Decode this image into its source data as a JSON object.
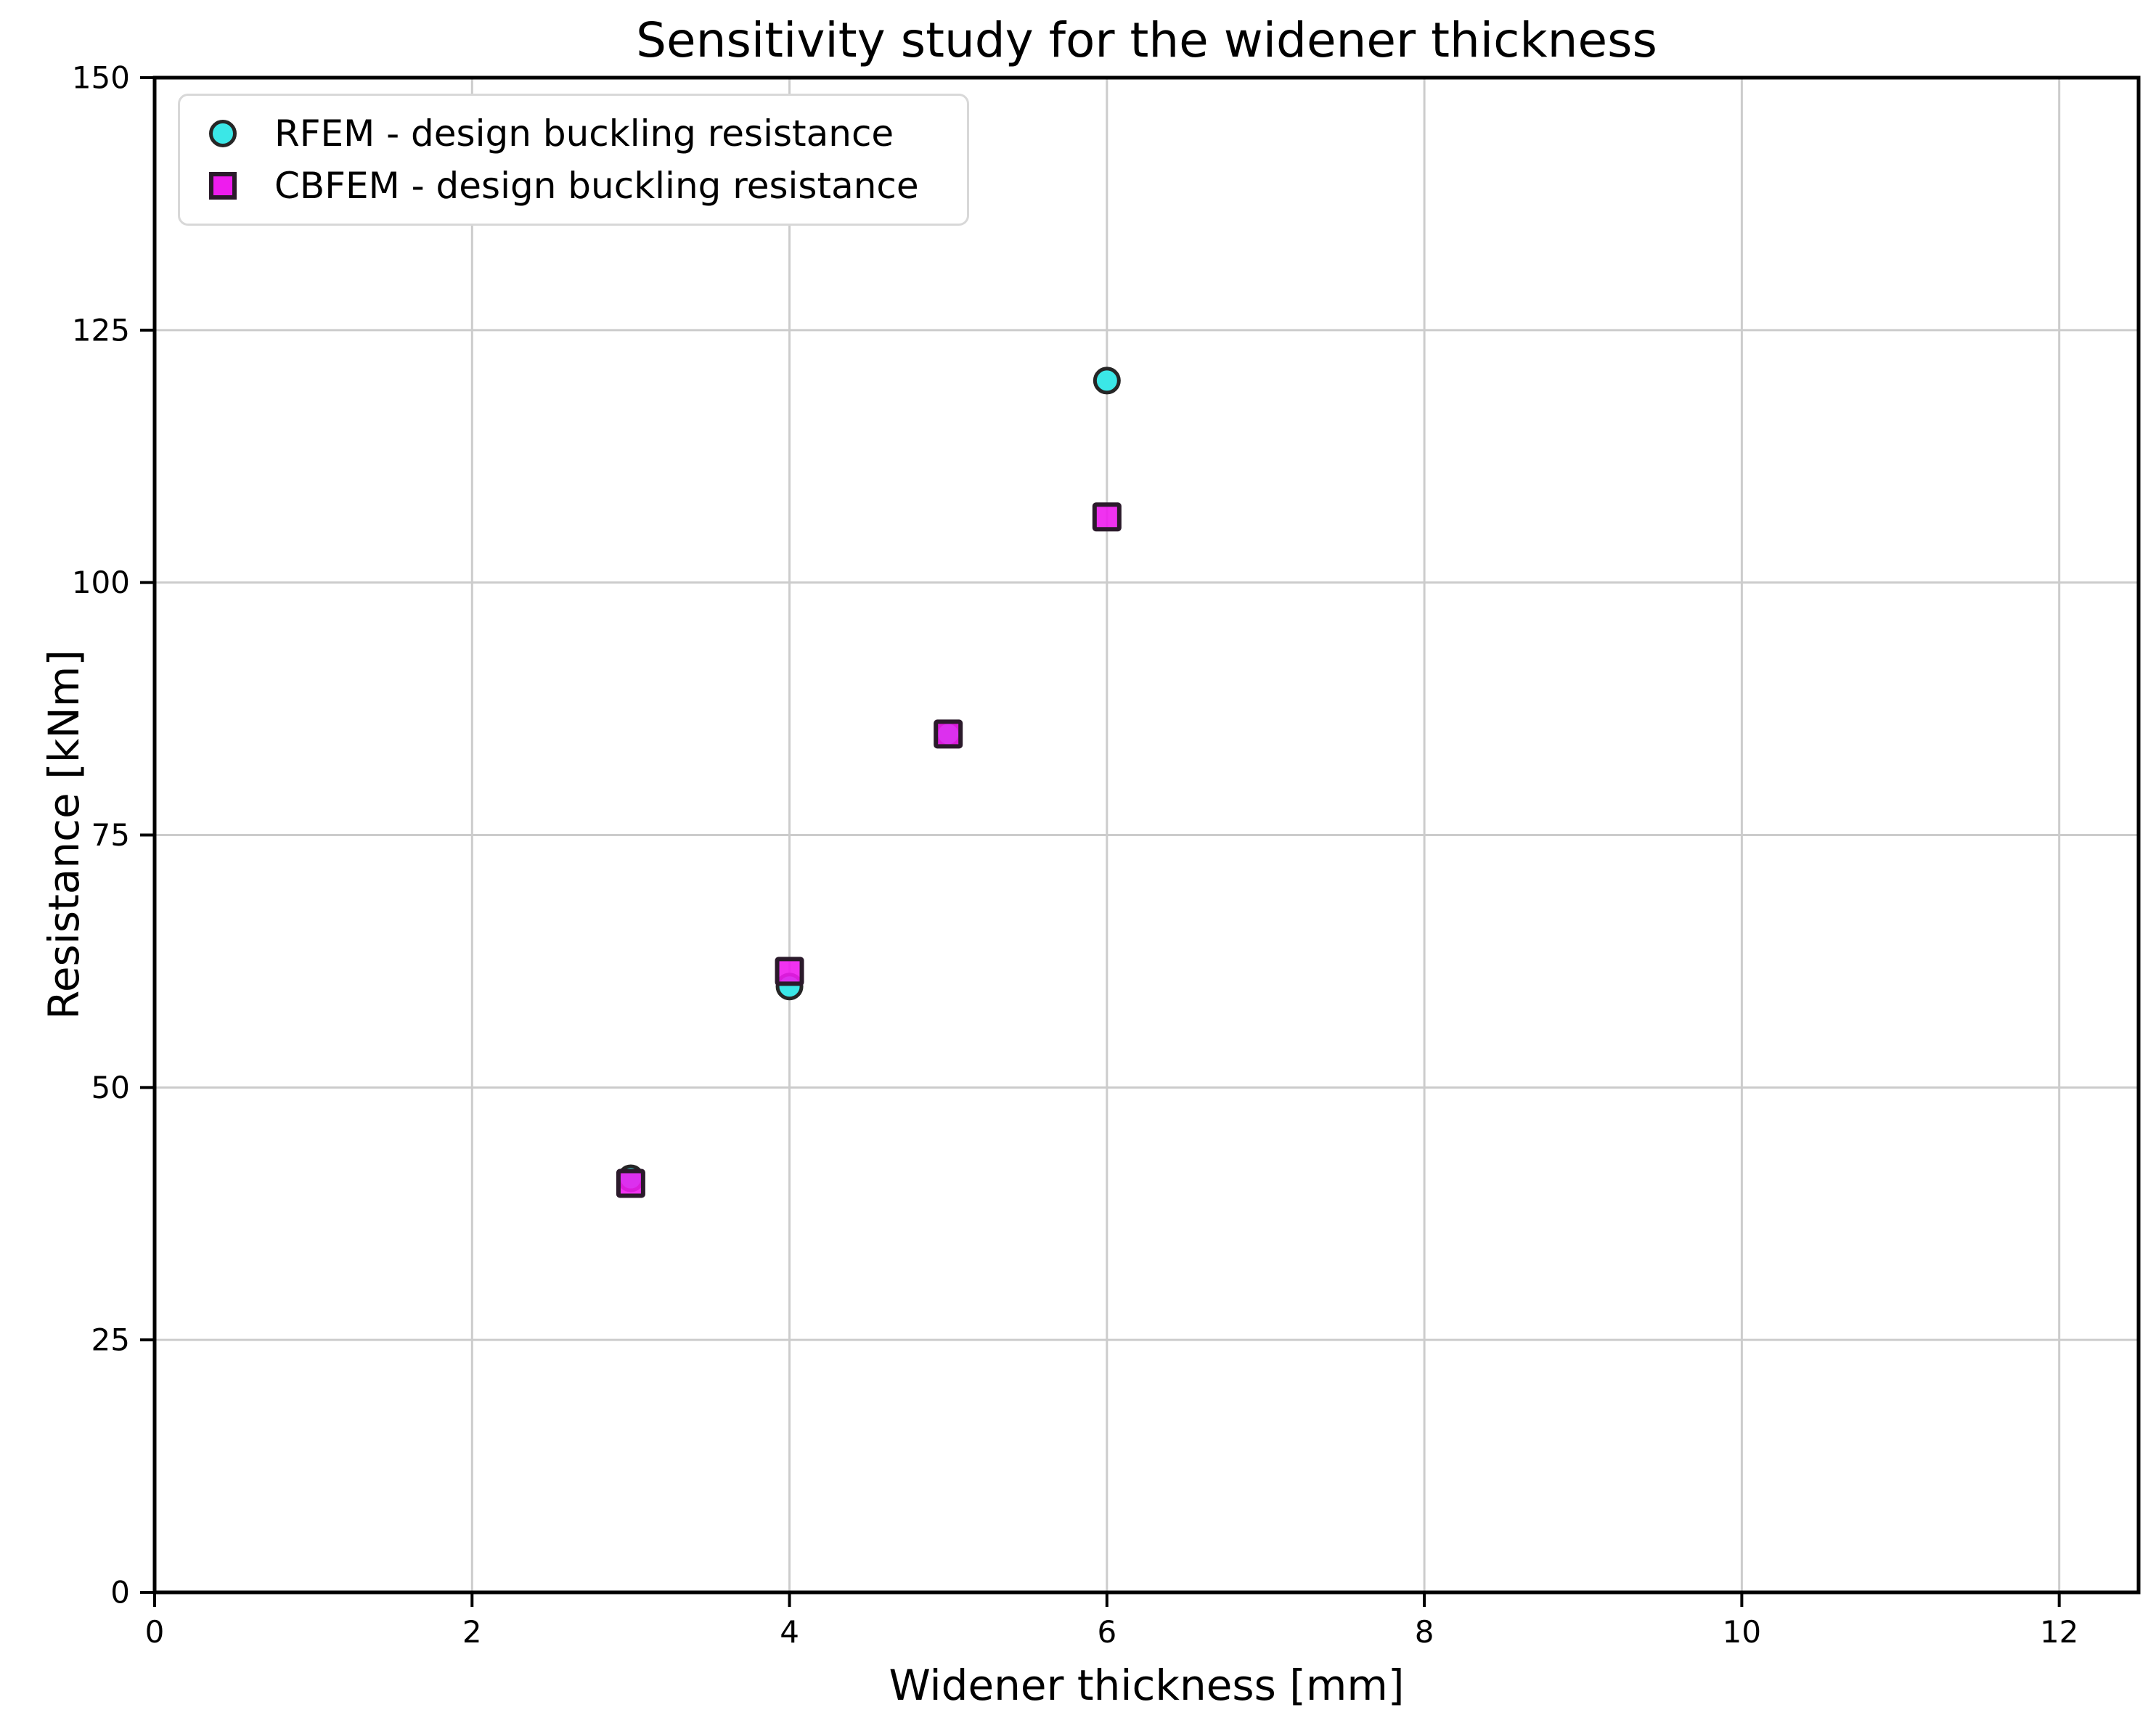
{
  "chart_data": {
    "type": "scatter",
    "title": "Sensitivity study for the widener thickness",
    "xlabel": "Widener thickness [mm]",
    "ylabel": "Resistance [kNm]",
    "xlim": [
      0,
      12.5
    ],
    "ylim": [
      0,
      150
    ],
    "xticks": [
      0,
      2,
      4,
      6,
      8,
      10,
      12
    ],
    "yticks": [
      0,
      25,
      50,
      75,
      100,
      125,
      150
    ],
    "grid": true,
    "legend_position": "upper left",
    "series": [
      {
        "name": "RFEM - design buckling resistance",
        "marker": "circle",
        "fill_color": "#3BE7E7",
        "edge_color": "#262626",
        "points": [
          [
            3,
            41
          ],
          [
            4,
            60
          ],
          [
            5,
            85
          ],
          [
            6,
            120
          ]
        ]
      },
      {
        "name": "CBFEM - design buckling resistance",
        "marker": "square",
        "fill_color": "#EE1CEE",
        "edge_color": "#2B1A2B",
        "points": [
          [
            3,
            40.5
          ],
          [
            4,
            61.5
          ],
          [
            5,
            85
          ],
          [
            6,
            106.5
          ]
        ]
      }
    ]
  },
  "colors": {
    "background": "#ffffff",
    "grid": "#cccccc",
    "spine": "#000000",
    "tick": "#000000",
    "tick_label": "#000000",
    "legend_border": "#d8d8d8"
  }
}
